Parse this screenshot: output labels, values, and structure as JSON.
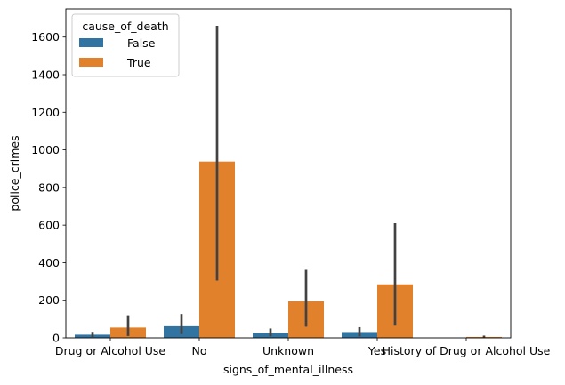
{
  "chart_data": {
    "type": "bar",
    "title": "",
    "xlabel": "signs_of_mental_illness",
    "ylabel": "police_crimes",
    "categories": [
      "Drug or Alcohol Use",
      "No",
      "Unknown",
      "Yes",
      "History of Drug or Alcohol Use"
    ],
    "ylim": [
      0,
      1750
    ],
    "yticks": [
      0,
      200,
      400,
      600,
      800,
      1000,
      1200,
      1400,
      1600
    ],
    "grid": false,
    "legend": {
      "title": "cause_of_death",
      "placement": "top-left"
    },
    "series": [
      {
        "name": "False",
        "color": "#3274a1",
        "values": [
          17,
          62,
          26,
          31,
          null
        ],
        "ci": [
          [
            5,
            32
          ],
          [
            20,
            127
          ],
          [
            8,
            50
          ],
          [
            8,
            57
          ],
          null
        ]
      },
      {
        "name": "True",
        "color": "#e1812c",
        "values": [
          55,
          938,
          195,
          285,
          5
        ],
        "ci": [
          [
            10,
            120
          ],
          [
            305,
            1660
          ],
          [
            60,
            362
          ],
          [
            65,
            610
          ],
          [
            0,
            12
          ]
        ]
      }
    ],
    "errorbar_color": "#424242"
  }
}
